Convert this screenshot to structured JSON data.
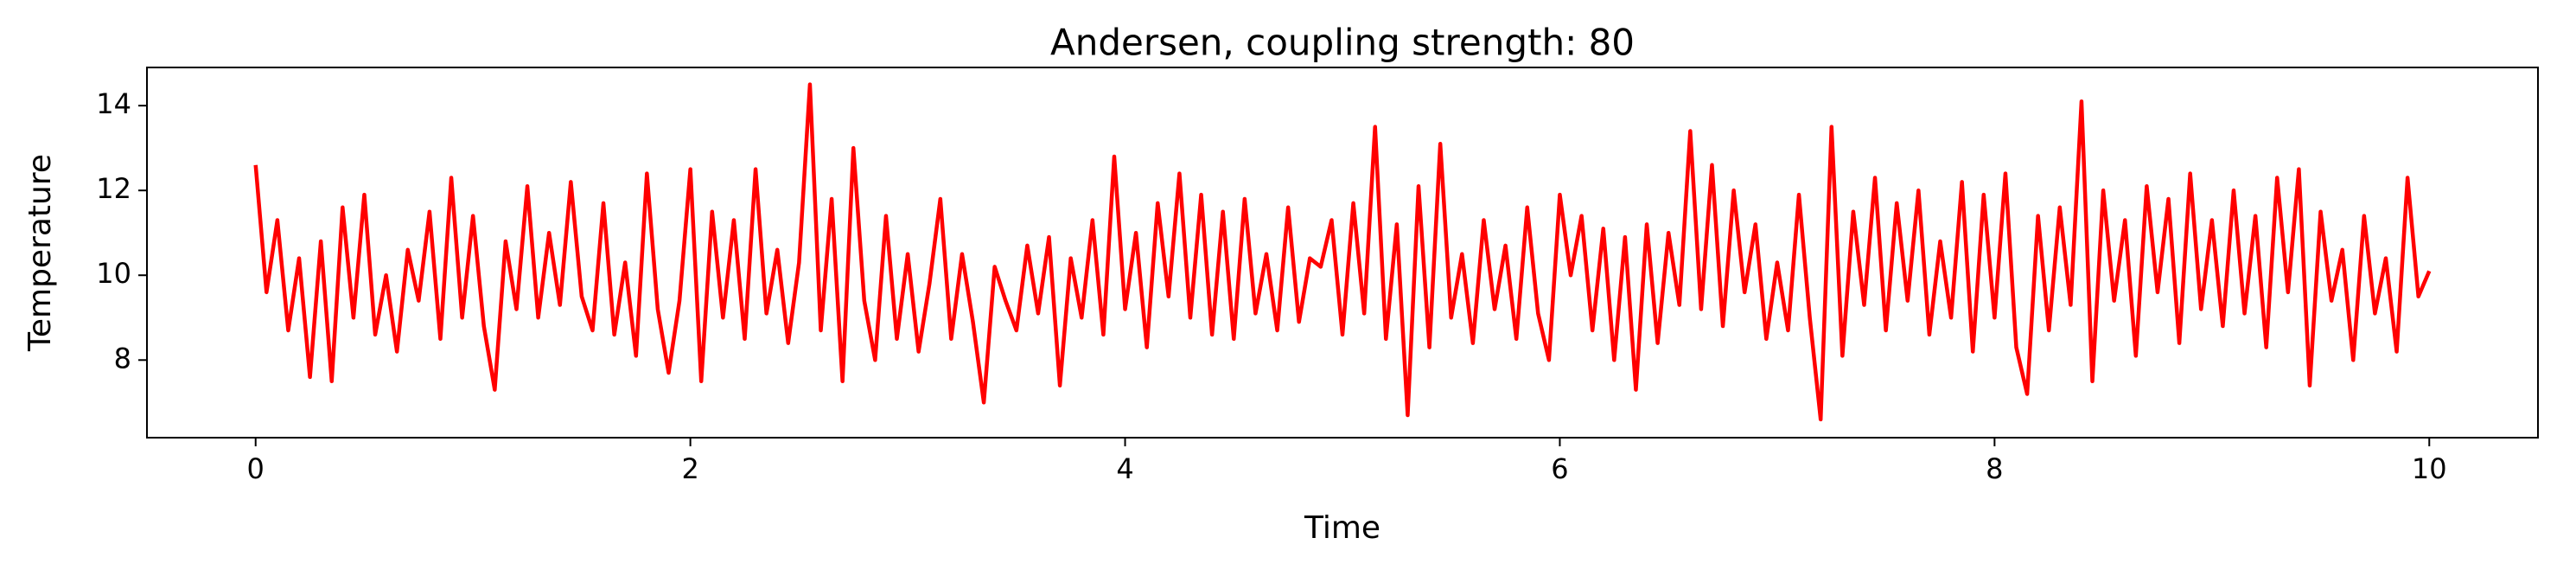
{
  "chart_data": {
    "type": "line",
    "title": "Andersen, coupling strength: 80",
    "x_label": "Time",
    "y_label": "Temperature",
    "xlim": [
      -0.5,
      10.5
    ],
    "ylim": [
      6.17,
      14.9
    ],
    "xticks": [
      0,
      2,
      4,
      6,
      8,
      10
    ],
    "yticks": [
      8,
      10,
      12,
      14
    ],
    "grid": false,
    "x": [
      0,
      0.05,
      0.1,
      0.15,
      0.2,
      0.25,
      0.3,
      0.35,
      0.4,
      0.45,
      0.5,
      0.55,
      0.6,
      0.65,
      0.7,
      0.75,
      0.8,
      0.85,
      0.9,
      0.95,
      1,
      1.05,
      1.1,
      1.15,
      1.2,
      1.25,
      1.3,
      1.35,
      1.4,
      1.45,
      1.5,
      1.55,
      1.6,
      1.65,
      1.7,
      1.75,
      1.8,
      1.85,
      1.9,
      1.95,
      2,
      2.05,
      2.1,
      2.15,
      2.2,
      2.25,
      2.3,
      2.35,
      2.4,
      2.45,
      2.5,
      2.55,
      2.6,
      2.65,
      2.7,
      2.75,
      2.8,
      2.85,
      2.9,
      2.95,
      3,
      3.05,
      3.1,
      3.15,
      3.2,
      3.25,
      3.3,
      3.35,
      3.4,
      3.45,
      3.5,
      3.55,
      3.6,
      3.65,
      3.7,
      3.75,
      3.8,
      3.85,
      3.9,
      3.95,
      4,
      4.05,
      4.1,
      4.15,
      4.2,
      4.25,
      4.3,
      4.35,
      4.4,
      4.45,
      4.5,
      4.55,
      4.6,
      4.65,
      4.7,
      4.75,
      4.8,
      4.85,
      4.9,
      4.95,
      5,
      5.05,
      5.1,
      5.15,
      5.2,
      5.25,
      5.3,
      5.35,
      5.4,
      5.45,
      5.5,
      5.55,
      5.6,
      5.65,
      5.7,
      5.75,
      5.8,
      5.85,
      5.9,
      5.95,
      6,
      6.05,
      6.1,
      6.15,
      6.2,
      6.25,
      6.3,
      6.35,
      6.4,
      6.45,
      6.5,
      6.55,
      6.6,
      6.65,
      6.7,
      6.75,
      6.8,
      6.85,
      6.9,
      6.95,
      7,
      7.05,
      7.1,
      7.15,
      7.2,
      7.25,
      7.3,
      7.35,
      7.4,
      7.45,
      7.5,
      7.55,
      7.6,
      7.65,
      7.7,
      7.75,
      7.8,
      7.85,
      7.9,
      7.95,
      8,
      8.05,
      8.1,
      8.15,
      8.2,
      8.25,
      8.3,
      8.35,
      8.4,
      8.45,
      8.5,
      8.55,
      8.6,
      8.65,
      8.7,
      8.75,
      8.8,
      8.85,
      8.9,
      8.95,
      9,
      9.05,
      9.1,
      9.15,
      9.2,
      9.25,
      9.3,
      9.35,
      9.4,
      9.45,
      9.5,
      9.55,
      9.6,
      9.65,
      9.7,
      9.75,
      9.8,
      9.85,
      9.9,
      9.95,
      10
    ],
    "series": [
      {
        "color": "#ff0000",
        "values": [
          12.6,
          9.6,
          11.3,
          8.7,
          10.4,
          7.6,
          10.8,
          7.5,
          11.6,
          9.0,
          11.9,
          8.6,
          10.0,
          8.2,
          10.6,
          9.4,
          11.5,
          8.5,
          12.3,
          9.0,
          11.4,
          8.8,
          7.3,
          10.8,
          9.2,
          12.1,
          9.0,
          11.0,
          9.3,
          12.2,
          9.5,
          8.7,
          11.7,
          8.6,
          10.3,
          8.1,
          12.4,
          9.2,
          7.7,
          9.4,
          12.5,
          7.5,
          11.5,
          9.0,
          11.3,
          8.5,
          12.5,
          9.1,
          10.6,
          8.4,
          10.3,
          14.5,
          8.7,
          11.8,
          7.5,
          13.0,
          9.4,
          8.0,
          11.4,
          8.5,
          10.5,
          8.2,
          9.8,
          11.8,
          8.5,
          10.5,
          8.9,
          7.0,
          10.2,
          9.4,
          8.7,
          10.7,
          9.1,
          10.9,
          7.4,
          10.4,
          9.0,
          11.3,
          8.6,
          12.8,
          9.2,
          11.0,
          8.3,
          11.7,
          9.5,
          12.4,
          9.0,
          11.9,
          8.6,
          11.5,
          8.5,
          11.8,
          9.1,
          10.5,
          8.7,
          11.6,
          8.9,
          10.4,
          10.2,
          11.3,
          8.6,
          11.7,
          9.1,
          13.5,
          8.5,
          11.2,
          6.7,
          12.1,
          8.3,
          13.1,
          9.0,
          10.5,
          8.4,
          11.3,
          9.2,
          10.7,
          8.5,
          11.6,
          9.1,
          8.0,
          11.9,
          10.0,
          11.4,
          8.7,
          11.1,
          8.0,
          10.9,
          7.3,
          11.2,
          8.4,
          11.0,
          9.3,
          13.4,
          9.2,
          12.6,
          8.8,
          12.0,
          9.6,
          11.2,
          8.5,
          10.3,
          8.7,
          11.9,
          9.0,
          6.6,
          13.5,
          8.1,
          11.5,
          9.3,
          12.3,
          8.7,
          11.7,
          9.4,
          12.0,
          8.6,
          10.8,
          9.0,
          12.2,
          8.2,
          11.9,
          9.0,
          12.4,
          8.3,
          7.2,
          11.4,
          8.7,
          11.6,
          9.3,
          14.1,
          7.5,
          12.0,
          9.4,
          11.3,
          8.1,
          12.1,
          9.6,
          11.8,
          8.4,
          12.4,
          9.2,
          11.3,
          8.8,
          12.0,
          9.1,
          11.4,
          8.3,
          12.3,
          9.6,
          12.5,
          7.4,
          11.5,
          9.4,
          10.6,
          8.0,
          11.4,
          9.1,
          10.4,
          8.2,
          12.3,
          9.5,
          10.1
        ]
      }
    ]
  }
}
